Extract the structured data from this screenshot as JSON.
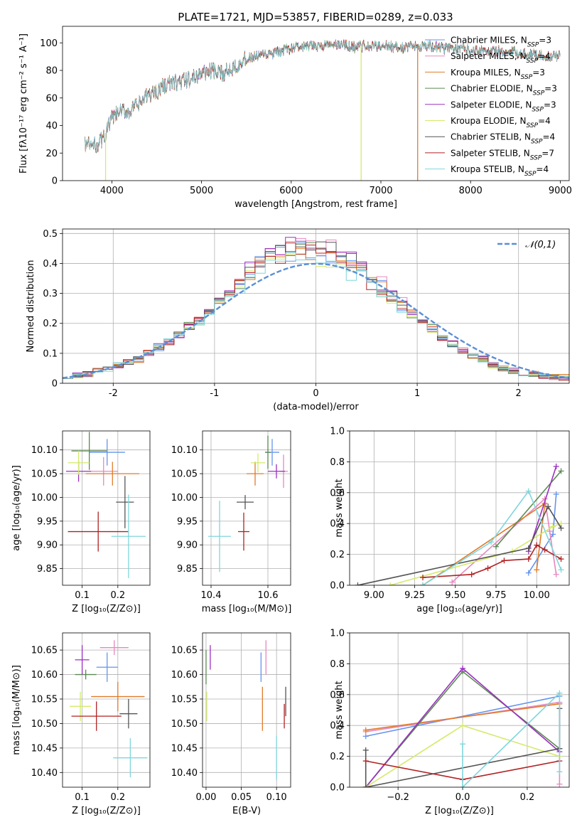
{
  "figure_title": "PLATE=1721, MJD=53857, FIBERID=0289, z=0.033",
  "colors": {
    "Chabrier MILES": "#6495ed",
    "Salpeter MILES": "#e887c0",
    "Kroupa MILES": "#e07b29",
    "Chabrier ELODIE": "#5a8a50",
    "Salpeter ELODIE": "#9b30c0",
    "Kroupa ELODIE": "#d4ea6b",
    "Chabrier STELIB": "#555555",
    "Salpeter STELIB": "#b22222",
    "Kroupa STELIB": "#7ed6dc",
    "normal": "#5b8fd6"
  },
  "chart_data": [
    {
      "id": "spectrum",
      "type": "line",
      "title": "PLATE=1721, MJD=53857, FIBERID=0289, z=0.033",
      "xlabel": "wavelength [Angstrom, rest frame]",
      "ylabel": "Flux [fλ10⁻¹⁷ erg cm⁻² s⁻¹ A⁻¹]",
      "xlim": [
        3450,
        9100
      ],
      "ylim": [
        0,
        112
      ],
      "xticks": [
        4000,
        5000,
        6000,
        7000,
        8000,
        9000
      ],
      "yticks": [
        0,
        20,
        40,
        60,
        80,
        100
      ],
      "legend_position": "right",
      "legend": [
        {
          "name": "Chabrier MILES",
          "label": "Chabrier MILES, N",
          "sub": "SSP",
          "n": "=3"
        },
        {
          "name": "Salpeter MILES",
          "label": "Salpeter MILES, N",
          "sub": "SSP",
          "n": "=4"
        },
        {
          "name": "Kroupa MILES",
          "label": "Kroupa MILES, N",
          "sub": "SSP",
          "n": "=3"
        },
        {
          "name": "Chabrier ELODIE",
          "label": "Chabrier ELODIE, N",
          "sub": "SSP",
          "n": "=3"
        },
        {
          "name": "Salpeter ELODIE",
          "label": "Salpeter ELODIE, N",
          "sub": "SSP",
          "n": "=3"
        },
        {
          "name": "Kroupa ELODIE",
          "label": "Kroupa ELODIE, N",
          "sub": "SSP",
          "n": "=4"
        },
        {
          "name": "Chabrier STELIB",
          "label": "Chabrier STELIB, N",
          "sub": "SSP",
          "n": "=4"
        },
        {
          "name": "Salpeter STELIB",
          "label": "Salpeter STELIB, N",
          "sub": "SSP",
          "n": "=7"
        },
        {
          "name": "Kroupa STELIB",
          "label": "Kroupa STELIB, N",
          "sub": "SSP",
          "n": "=4"
        }
      ],
      "continuum": {
        "x": [
          3700,
          3800,
          3900,
          4000,
          4100,
          4200,
          4300,
          4400,
          4500,
          4600,
          4700,
          4800,
          4900,
          5000,
          5100,
          5200,
          5300,
          5400,
          5500,
          5600,
          5700,
          5800,
          5900,
          6000,
          6100,
          6200,
          6300,
          6400,
          6500,
          6600,
          6700,
          6800,
          6900,
          7000,
          7100,
          7200,
          7300,
          7400,
          7500,
          7600,
          7700,
          7800,
          7900,
          8000,
          8100,
          8200,
          8300,
          8400,
          8500,
          8600,
          8700,
          8800,
          8900,
          9000
        ],
        "y": [
          27,
          25,
          30,
          45,
          50,
          50,
          55,
          62,
          65,
          70,
          71,
          72,
          74,
          78,
          80,
          77,
          80,
          85,
          88,
          90,
          91,
          92,
          94,
          96,
          97,
          97,
          98,
          98,
          99,
          98,
          97,
          98,
          97,
          98,
          98,
          96,
          97,
          98,
          98,
          97,
          96,
          96,
          96,
          95,
          95,
          94,
          94,
          93,
          93,
          92,
          92,
          91,
          90,
          90
        ]
      },
      "cut_lines": [
        {
          "series": "Kroupa ELODIE",
          "x": 3930
        },
        {
          "series": "Kroupa ELODIE",
          "x": 6780
        },
        {
          "series": "Kroupa MILES",
          "x": 7410
        }
      ]
    },
    {
      "id": "residuals",
      "type": "histogram",
      "xlabel": "(data-model)/error",
      "ylabel": "Normed distribution",
      "xlim": [
        -2.5,
        2.5
      ],
      "ylim": [
        0,
        0.515
      ],
      "xticks": [
        -2,
        -1,
        0,
        1,
        2
      ],
      "yticks": [
        0.0,
        0.1,
        0.2,
        0.3,
        0.4,
        0.5
      ],
      "legend_position": "upper right",
      "normal_label": "𝒩(0,1)",
      "bin_edges": [
        -2.5,
        -2.4,
        -2.3,
        -2.2,
        -2.1,
        -2.0,
        -1.9,
        -1.8,
        -1.7,
        -1.6,
        -1.5,
        -1.4,
        -1.3,
        -1.2,
        -1.1,
        -1.0,
        -0.9,
        -0.8,
        -0.7,
        -0.6,
        -0.5,
        -0.4,
        -0.3,
        -0.2,
        -0.1,
        0.0,
        0.1,
        0.2,
        0.3,
        0.4,
        0.5,
        0.6,
        0.7,
        0.8,
        0.9,
        1.0,
        1.1,
        1.2,
        1.3,
        1.4,
        1.5,
        1.6,
        1.7,
        1.8,
        1.9,
        2.0,
        2.1,
        2.2,
        2.3,
        2.4,
        2.5
      ],
      "base_density": [
        0.02,
        0.025,
        0.03,
        0.04,
        0.05,
        0.06,
        0.07,
        0.08,
        0.1,
        0.12,
        0.14,
        0.16,
        0.19,
        0.21,
        0.24,
        0.27,
        0.3,
        0.33,
        0.37,
        0.4,
        0.42,
        0.43,
        0.44,
        0.45,
        0.45,
        0.44,
        0.43,
        0.41,
        0.39,
        0.37,
        0.34,
        0.32,
        0.29,
        0.26,
        0.23,
        0.2,
        0.18,
        0.15,
        0.13,
        0.11,
        0.09,
        0.08,
        0.06,
        0.05,
        0.04,
        0.035,
        0.03,
        0.025,
        0.02,
        0.02
      ],
      "series_offsets": {
        "Chabrier MILES": 0.0,
        "Salpeter MILES": 0.02,
        "Kroupa MILES": -0.01,
        "Chabrier ELODIE": 0.01,
        "Salpeter ELODIE": 0.025,
        "Kroupa ELODIE": -0.015,
        "Chabrier STELIB": 0.015,
        "Salpeter STELIB": -0.005,
        "Kroupa STELIB": -0.02
      }
    },
    {
      "id": "age_vs_Z",
      "type": "errorbar",
      "xlabel": "Z [log₁₀(Z/Z⊙)]",
      "ylabel": "age  [log₁₀(age/yr)]",
      "xlim": [
        0.045,
        0.29
      ],
      "ylim": [
        9.815,
        10.14
      ],
      "xticks": [
        0.1,
        0.2
      ],
      "xticklabels": [
        "0.1",
        "0.2"
      ],
      "yticks": [
        9.85,
        9.9,
        9.95,
        10.0,
        10.05,
        10.1
      ],
      "yticklabels": [
        "9.85",
        "9.90",
        "9.95",
        "10.00",
        "10.05",
        "10.10"
      ],
      "points": [
        {
          "series": "Chabrier MILES",
          "x": 0.17,
          "y": 10.095,
          "xerr": 0.05,
          "yerr": 0.028
        },
        {
          "series": "Salpeter MILES",
          "x": 0.16,
          "y": 10.055,
          "xerr": 0.04,
          "yerr": 0.03
        },
        {
          "series": "Kroupa MILES",
          "x": 0.185,
          "y": 10.05,
          "xerr": 0.075,
          "yerr": 0.025
        },
        {
          "series": "Chabrier ELODIE",
          "x": 0.12,
          "y": 10.098,
          "xerr": 0.05,
          "yerr": 0.04
        },
        {
          "series": "Salpeter ELODIE",
          "x": 0.09,
          "y": 10.055,
          "xerr": 0.035,
          "yerr": 0.022
        },
        {
          "series": "Kroupa ELODIE",
          "x": 0.09,
          "y": 10.073,
          "xerr": 0.03,
          "yerr": 0.025
        },
        {
          "series": "Chabrier STELIB",
          "x": 0.22,
          "y": 9.99,
          "xerr": 0.025,
          "yerr": 0.055
        },
        {
          "series": "Salpeter STELIB",
          "x": 0.145,
          "y": 9.928,
          "xerr": 0.085,
          "yerr": 0.042
        },
        {
          "series": "Kroupa STELIB",
          "x": 0.23,
          "y": 9.918,
          "xerr": 0.048,
          "yerr": 0.088
        }
      ]
    },
    {
      "id": "age_vs_mass",
      "type": "errorbar",
      "xlabel": "mass [log₁₀(M/M⊙)]",
      "ylabel": "",
      "xlim": [
        10.37,
        10.68
      ],
      "ylim": [
        9.815,
        10.14
      ],
      "xticks": [
        10.4,
        10.6
      ],
      "xticklabels": [
        "10.4",
        "10.6"
      ],
      "yticks": [
        9.85,
        9.9,
        9.95,
        10.0,
        10.05,
        10.1
      ],
      "yticklabels": [
        "9.85",
        "9.90",
        "9.95",
        "10.00",
        "10.05",
        "10.10"
      ],
      "points": [
        {
          "series": "Chabrier MILES",
          "x": 10.615,
          "y": 10.095,
          "xerr": 0.025,
          "yerr": 0.028
        },
        {
          "series": "Salpeter MILES",
          "x": 10.655,
          "y": 10.055,
          "xerr": 0.015,
          "yerr": 0.035
        },
        {
          "series": "Kroupa MILES",
          "x": 10.555,
          "y": 10.05,
          "xerr": 0.03,
          "yerr": 0.025
        },
        {
          "series": "Chabrier ELODIE",
          "x": 10.6,
          "y": 10.095,
          "xerr": 0.01,
          "yerr": 0.035
        },
        {
          "series": "Salpeter ELODIE",
          "x": 10.63,
          "y": 10.055,
          "xerr": 0.03,
          "yerr": 0.015
        },
        {
          "series": "Kroupa ELODIE",
          "x": 10.565,
          "y": 10.073,
          "xerr": 0.025,
          "yerr": 0.02
        },
        {
          "series": "Chabrier STELIB",
          "x": 10.52,
          "y": 9.99,
          "xerr": 0.03,
          "yerr": 0.015
        },
        {
          "series": "Salpeter STELIB",
          "x": 10.515,
          "y": 9.928,
          "xerr": 0.02,
          "yerr": 0.04
        },
        {
          "series": "Kroupa STELIB",
          "x": 10.43,
          "y": 9.918,
          "xerr": 0.04,
          "yerr": 0.075
        }
      ]
    },
    {
      "id": "weight_vs_age",
      "type": "line",
      "xlabel": "age  [log₁₀(age/yr)]",
      "ylabel": "mass weight",
      "xlim": [
        8.85,
        10.2
      ],
      "ylim": [
        0.0,
        1.0
      ],
      "xticks": [
        9.0,
        9.25,
        9.5,
        9.75,
        10.0
      ],
      "xticklabels": [
        "9.00",
        "9.25",
        "9.50",
        "9.75",
        "10.00"
      ],
      "yticks": [
        0.0,
        0.2,
        0.4,
        0.6,
        0.8,
        1.0
      ],
      "yticklabels": [
        "0.0",
        "0.2",
        "0.4",
        "0.6",
        "0.8",
        "1.0"
      ],
      "series": [
        {
          "name": "Chabrier MILES",
          "x": [
            9.95,
            10.1,
            10.12
          ],
          "y": [
            0.08,
            0.33,
            0.59
          ]
        },
        {
          "name": "Salpeter MILES",
          "x": [
            9.48,
            10.05,
            10.12,
            10.08
          ],
          "y": [
            0.02,
            0.56,
            0.07,
            0.35
          ]
        },
        {
          "name": "Kroupa MILES",
          "x": [
            9.3,
            10.05,
            10.0
          ],
          "y": [
            0.0,
            0.53,
            0.1
          ]
        },
        {
          "name": "Chabrier ELODIE",
          "x": [
            9.75,
            10.15
          ],
          "y": [
            0.25,
            0.74
          ]
        },
        {
          "name": "Salpeter ELODIE",
          "x": [
            9.95,
            10.12
          ],
          "y": [
            0.22,
            0.77
          ]
        },
        {
          "name": "Kroupa ELODIE",
          "x": [
            9.1,
            9.85,
            10.1,
            10.15
          ],
          "y": [
            0.0,
            0.22,
            0.38,
            0.4
          ]
        },
        {
          "name": "Chabrier STELIB",
          "x": [
            8.9,
            9.95,
            10.07,
            10.15
          ],
          "y": [
            0.0,
            0.24,
            0.51,
            0.37
          ]
        },
        {
          "name": "Salpeter STELIB",
          "x": [
            9.3,
            9.6,
            9.7,
            9.8,
            9.95,
            10.0,
            10.05,
            10.15
          ],
          "y": [
            0.05,
            0.07,
            0.11,
            0.16,
            0.17,
            0.26,
            0.23,
            0.17
          ]
        },
        {
          "name": "Kroupa STELIB",
          "x": [
            9.3,
            9.72,
            9.95,
            10.15
          ],
          "y": [
            0.0,
            0.28,
            0.61,
            0.1
          ]
        }
      ]
    },
    {
      "id": "mass_vs_Z",
      "type": "errorbar",
      "xlabel": "Z [log₁₀(Z/Z⊙)]",
      "ylabel": "mass [log₁₀(M/M⊙)]",
      "xlim": [
        0.045,
        0.29
      ],
      "ylim": [
        10.37,
        10.685
      ],
      "xticks": [
        0.1,
        0.2
      ],
      "xticklabels": [
        "0.1",
        "0.2"
      ],
      "yticks": [
        10.4,
        10.45,
        10.5,
        10.55,
        10.6,
        10.65
      ],
      "yticklabels": [
        "10.40",
        "10.45",
        "10.50",
        "10.55",
        "10.60",
        "10.65"
      ],
      "points": [
        {
          "series": "Chabrier MILES",
          "x": 0.17,
          "y": 10.615,
          "xerr": 0.03,
          "yerr": 0.03
        },
        {
          "series": "Salpeter MILES",
          "x": 0.19,
          "y": 10.655,
          "xerr": 0.04,
          "yerr": 0.015
        },
        {
          "series": "Kroupa MILES",
          "x": 0.2,
          "y": 10.555,
          "xerr": 0.075,
          "yerr": 0.03
        },
        {
          "series": "Chabrier ELODIE",
          "x": 0.11,
          "y": 10.6,
          "xerr": 0.03,
          "yerr": 0.01
        },
        {
          "series": "Salpeter ELODIE",
          "x": 0.1,
          "y": 10.63,
          "xerr": 0.02,
          "yerr": 0.03
        },
        {
          "series": "Kroupa ELODIE",
          "x": 0.095,
          "y": 10.535,
          "xerr": 0.03,
          "yerr": 0.03
        },
        {
          "series": "Chabrier STELIB",
          "x": 0.23,
          "y": 10.52,
          "xerr": 0.025,
          "yerr": 0.03
        },
        {
          "series": "Salpeter STELIB",
          "x": 0.14,
          "y": 10.515,
          "xerr": 0.07,
          "yerr": 0.03
        },
        {
          "series": "Kroupa STELIB",
          "x": 0.235,
          "y": 10.43,
          "xerr": 0.048,
          "yerr": 0.04
        }
      ]
    },
    {
      "id": "mass_vs_ebv",
      "type": "errorbar",
      "xlabel": "E(B-V)",
      "ylabel": "",
      "xlim": [
        -0.005,
        0.12
      ],
      "ylim": [
        10.37,
        10.685
      ],
      "xticks": [
        0.0,
        0.05,
        0.1
      ],
      "xticklabels": [
        "0.00",
        "0.05",
        "0.10"
      ],
      "yticks": [
        10.4,
        10.45,
        10.5,
        10.55,
        10.6,
        10.65
      ],
      "yticklabels": [
        "10.40",
        "10.45",
        "10.50",
        "10.55",
        "10.60",
        "10.65"
      ],
      "points": [
        {
          "series": "Chabrier MILES",
          "x": 0.078,
          "y": 10.615,
          "xerr": 0.0,
          "yerr": 0.03
        },
        {
          "series": "Salpeter MILES",
          "x": 0.085,
          "y": 10.635,
          "xerr": 0.0,
          "yerr": 0.035
        },
        {
          "series": "Kroupa MILES",
          "x": 0.08,
          "y": 10.53,
          "xerr": 0.0,
          "yerr": 0.045
        },
        {
          "series": "Chabrier ELODIE",
          "x": 0.0,
          "y": 10.615,
          "xerr": 0.0,
          "yerr": 0.035
        },
        {
          "series": "Salpeter ELODIE",
          "x": 0.006,
          "y": 10.635,
          "xerr": 0.0,
          "yerr": 0.025
        },
        {
          "series": "Kroupa ELODIE",
          "x": 0.001,
          "y": 10.535,
          "xerr": 0.0,
          "yerr": 0.03
        },
        {
          "series": "Chabrier STELIB",
          "x": 0.113,
          "y": 10.545,
          "xerr": 0.0,
          "yerr": 0.03
        },
        {
          "series": "Salpeter STELIB",
          "x": 0.111,
          "y": 10.515,
          "xerr": 0.0,
          "yerr": 0.025
        },
        {
          "series": "Kroupa STELIB",
          "x": 0.1,
          "y": 10.43,
          "xerr": 0.0,
          "yerr": 0.045
        }
      ]
    },
    {
      "id": "weight_vs_Z",
      "type": "line",
      "xlabel": "Z [log₁₀(Z/Z⊙)]",
      "ylabel": "mass weight",
      "xlim": [
        -0.35,
        0.33
      ],
      "ylim": [
        0.0,
        1.0
      ],
      "xticks": [
        -0.2,
        0.0,
        0.2
      ],
      "xticklabels": [
        "−0.2",
        "0.0",
        "0.2"
      ],
      "yticks": [
        0.0,
        0.2,
        0.4,
        0.6,
        0.8,
        1.0
      ],
      "yticklabels": [
        "0.0",
        "0.2",
        "0.4",
        "0.6",
        "0.8",
        "1.0"
      ],
      "series": [
        {
          "name": "Chabrier MILES",
          "x": [
            -0.3,
            0.3
          ],
          "y": [
            0.33,
            0.59
          ]
        },
        {
          "name": "Salpeter MILES",
          "x": [
            -0.3,
            0.3,
            0.3
          ],
          "y": [
            0.36,
            0.55,
            0.02
          ]
        },
        {
          "name": "Kroupa MILES",
          "x": [
            -0.3,
            0.3
          ],
          "y": [
            0.37,
            0.54
          ]
        },
        {
          "name": "Chabrier ELODIE",
          "x": [
            -0.3,
            0.0,
            0.3
          ],
          "y": [
            0.0,
            0.75,
            0.25
          ]
        },
        {
          "name": "Salpeter ELODIE",
          "x": [
            -0.3,
            0.0,
            0.3
          ],
          "y": [
            0.0,
            0.77,
            0.23
          ]
        },
        {
          "name": "Kroupa ELODIE",
          "x": [
            -0.3,
            0.0,
            0.3
          ],
          "y": [
            0.0,
            0.4,
            0.2
          ]
        },
        {
          "name": "Chabrier STELIB",
          "x": [
            -0.3,
            -0.3,
            0.3,
            0.3
          ],
          "y": [
            0.24,
            0.0,
            0.25,
            0.51
          ]
        },
        {
          "name": "Salpeter STELIB",
          "x": [
            -0.3,
            0.0,
            0.3
          ],
          "y": [
            0.17,
            0.05,
            0.17
          ]
        },
        {
          "name": "Kroupa STELIB",
          "x": [
            0.0,
            0.0,
            0.3,
            0.3
          ],
          "y": [
            0.28,
            0.0,
            0.61,
            0.1
          ]
        }
      ]
    }
  ]
}
